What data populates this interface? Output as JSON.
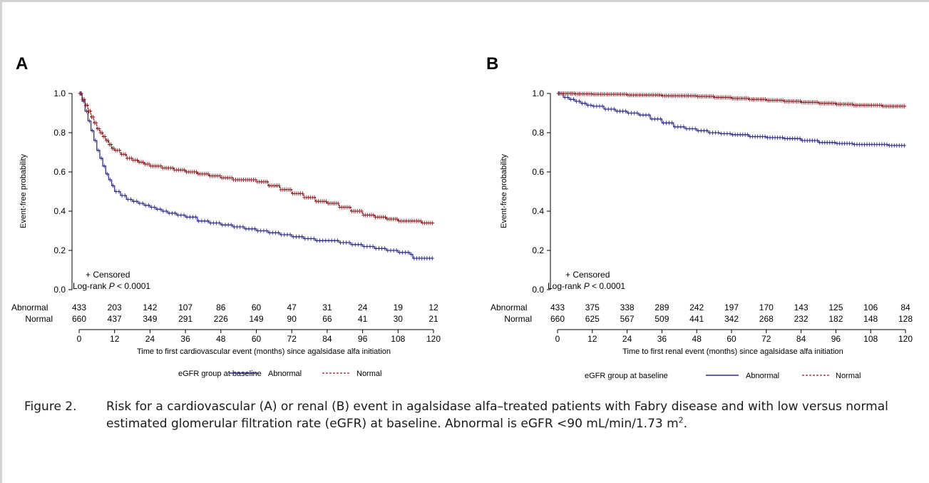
{
  "colors": {
    "abnormal": "#2e2e8c",
    "normal": "#8c1f24",
    "axis": "#000000"
  },
  "legend": {
    "title": "eGFR group at baseline",
    "abnormal_label": "Abnormal",
    "normal_label": "Normal"
  },
  "caption": {
    "label": "Figure 2.",
    "text_before_sup": "Risk for a cardiovascular (A) or renal (B) event in agalsidase alfa–treated patients with Fabry disease and with low versus normal estimated glomerular filtration rate (eGFR) at baseline. Abnormal is eGFR <90 mL/min/1.73 m",
    "sup": "2",
    "text_after_sup": "."
  },
  "chart_data": [
    {
      "panel": "A",
      "type": "line",
      "xlabel": "Time to first cardiovascular event (months) since agalsidase alfa initiation",
      "ylabel": "Event-free probability",
      "xlim": [
        0,
        120
      ],
      "ylim": [
        0,
        1
      ],
      "x_ticks": [
        "0",
        "12",
        "24",
        "36",
        "48",
        "60",
        "72",
        "84",
        "96",
        "108",
        "120"
      ],
      "y_ticks": [
        "0.0",
        "0.2",
        "0.4",
        "0.6",
        "0.8",
        "1.0"
      ],
      "annotation_censored": "+ Censored",
      "annotation_logrank_prefix": "Log-rank ",
      "annotation_logrank_p": "P",
      "annotation_logrank_suffix": " < 0.0001",
      "series": [
        {
          "name": "Abnormal",
          "style": "solid",
          "points": [
            [
              0,
              1.0
            ],
            [
              1,
              0.96
            ],
            [
              2,
              0.91
            ],
            [
              3,
              0.86
            ],
            [
              4,
              0.81
            ],
            [
              5,
              0.76
            ],
            [
              6,
              0.71
            ],
            [
              7,
              0.67
            ],
            [
              8,
              0.63
            ],
            [
              9,
              0.59
            ],
            [
              10,
              0.56
            ],
            [
              11,
              0.53
            ],
            [
              12,
              0.5
            ],
            [
              14,
              0.48
            ],
            [
              16,
              0.46
            ],
            [
              18,
              0.45
            ],
            [
              20,
              0.44
            ],
            [
              22,
              0.43
            ],
            [
              24,
              0.42
            ],
            [
              26,
              0.41
            ],
            [
              28,
              0.4
            ],
            [
              30,
              0.39
            ],
            [
              33,
              0.38
            ],
            [
              36,
              0.37
            ],
            [
              40,
              0.35
            ],
            [
              44,
              0.34
            ],
            [
              48,
              0.33
            ],
            [
              52,
              0.32
            ],
            [
              56,
              0.31
            ],
            [
              60,
              0.3
            ],
            [
              64,
              0.29
            ],
            [
              68,
              0.28
            ],
            [
              72,
              0.27
            ],
            [
              76,
              0.26
            ],
            [
              80,
              0.25
            ],
            [
              84,
              0.25
            ],
            [
              88,
              0.24
            ],
            [
              92,
              0.23
            ],
            [
              96,
              0.22
            ],
            [
              100,
              0.21
            ],
            [
              104,
              0.2
            ],
            [
              108,
              0.19
            ],
            [
              112,
              0.18
            ],
            [
              113,
              0.16
            ],
            [
              120,
              0.16
            ]
          ],
          "at_risk": [
            433,
            203,
            142,
            107,
            86,
            60,
            47,
            31,
            24,
            19,
            12
          ]
        },
        {
          "name": "Normal",
          "style": "dashed",
          "points": [
            [
              0,
              1.0
            ],
            [
              1,
              0.97
            ],
            [
              2,
              0.94
            ],
            [
              3,
              0.91
            ],
            [
              4,
              0.88
            ],
            [
              5,
              0.85
            ],
            [
              6,
              0.82
            ],
            [
              7,
              0.8
            ],
            [
              8,
              0.78
            ],
            [
              9,
              0.76
            ],
            [
              10,
              0.74
            ],
            [
              11,
              0.72
            ],
            [
              12,
              0.71
            ],
            [
              14,
              0.69
            ],
            [
              16,
              0.67
            ],
            [
              18,
              0.66
            ],
            [
              20,
              0.65
            ],
            [
              22,
              0.64
            ],
            [
              24,
              0.63
            ],
            [
              28,
              0.62
            ],
            [
              32,
              0.61
            ],
            [
              36,
              0.6
            ],
            [
              40,
              0.59
            ],
            [
              44,
              0.58
            ],
            [
              48,
              0.57
            ],
            [
              52,
              0.56
            ],
            [
              56,
              0.56
            ],
            [
              60,
              0.55
            ],
            [
              64,
              0.53
            ],
            [
              68,
              0.51
            ],
            [
              72,
              0.49
            ],
            [
              76,
              0.47
            ],
            [
              80,
              0.45
            ],
            [
              84,
              0.44
            ],
            [
              88,
              0.42
            ],
            [
              92,
              0.4
            ],
            [
              96,
              0.38
            ],
            [
              100,
              0.37
            ],
            [
              104,
              0.36
            ],
            [
              108,
              0.35
            ],
            [
              112,
              0.35
            ],
            [
              116,
              0.34
            ],
            [
              120,
              0.34
            ]
          ],
          "at_risk": [
            660,
            437,
            349,
            291,
            226,
            149,
            90,
            66,
            41,
            30,
            21
          ]
        }
      ]
    },
    {
      "panel": "B",
      "type": "line",
      "xlabel": "Time to first renal event (months) since agalsidase alfa initiation",
      "ylabel": "Event-free probability",
      "xlim": [
        0,
        120
      ],
      "ylim": [
        0,
        1
      ],
      "x_ticks": [
        "0",
        "12",
        "24",
        "36",
        "48",
        "60",
        "72",
        "84",
        "96",
        "108",
        "120"
      ],
      "y_ticks": [
        "0.0",
        "0.2",
        "0.4",
        "0.6",
        "0.8",
        "1.0"
      ],
      "annotation_censored": "+ Censored",
      "annotation_logrank_prefix": "Log-rank ",
      "annotation_logrank_p": "P",
      "annotation_logrank_suffix": " < 0.0001",
      "series": [
        {
          "name": "Abnormal",
          "style": "solid",
          "points": [
            [
              0,
              1.0
            ],
            [
              2,
              0.98
            ],
            [
              4,
              0.97
            ],
            [
              6,
              0.96
            ],
            [
              8,
              0.95
            ],
            [
              10,
              0.94
            ],
            [
              12,
              0.935
            ],
            [
              16,
              0.92
            ],
            [
              20,
              0.91
            ],
            [
              24,
              0.9
            ],
            [
              28,
              0.89
            ],
            [
              32,
              0.87
            ],
            [
              36,
              0.85
            ],
            [
              40,
              0.83
            ],
            [
              44,
              0.82
            ],
            [
              48,
              0.81
            ],
            [
              52,
              0.8
            ],
            [
              56,
              0.795
            ],
            [
              60,
              0.79
            ],
            [
              66,
              0.78
            ],
            [
              72,
              0.775
            ],
            [
              78,
              0.77
            ],
            [
              84,
              0.76
            ],
            [
              90,
              0.75
            ],
            [
              96,
              0.745
            ],
            [
              102,
              0.74
            ],
            [
              108,
              0.74
            ],
            [
              114,
              0.735
            ],
            [
              120,
              0.735
            ]
          ],
          "at_risk": [
            433,
            375,
            338,
            289,
            242,
            197,
            170,
            143,
            125,
            106,
            84
          ]
        },
        {
          "name": "Normal",
          "style": "dashed",
          "points": [
            [
              0,
              1.0
            ],
            [
              6,
              0.998
            ],
            [
              12,
              0.996
            ],
            [
              24,
              0.992
            ],
            [
              36,
              0.988
            ],
            [
              48,
              0.985
            ],
            [
              54,
              0.98
            ],
            [
              60,
              0.975
            ],
            [
              66,
              0.97
            ],
            [
              72,
              0.965
            ],
            [
              78,
              0.96
            ],
            [
              84,
              0.955
            ],
            [
              90,
              0.95
            ],
            [
              96,
              0.945
            ],
            [
              102,
              0.94
            ],
            [
              108,
              0.94
            ],
            [
              112,
              0.935
            ],
            [
              120,
              0.93
            ]
          ],
          "at_risk": [
            660,
            625,
            567,
            509,
            441,
            342,
            268,
            232,
            182,
            148,
            128
          ]
        }
      ]
    }
  ]
}
